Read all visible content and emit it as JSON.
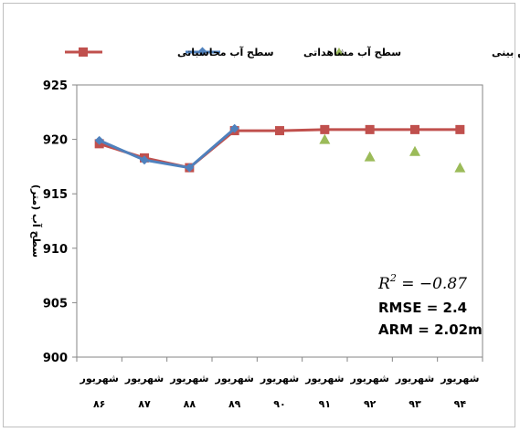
{
  "chart_data": {
    "type": "line",
    "ylabel": "سطح آب (متر)",
    "ylim": [
      900,
      925
    ],
    "yticks": [
      "900",
      "905",
      "910",
      "915",
      "920",
      "925"
    ],
    "categories": [
      {
        "top": "شهریور",
        "bottom": "۸۶"
      },
      {
        "top": "شهریور",
        "bottom": "۸۷"
      },
      {
        "top": "شهریور",
        "bottom": "۸۸"
      },
      {
        "top": "شهریور",
        "bottom": "۸۹"
      },
      {
        "top": "شهریور",
        "bottom": "۹۰"
      },
      {
        "top": "شهریور",
        "bottom": "۹۱"
      },
      {
        "top": "شهریور",
        "bottom": "۹۲"
      },
      {
        "top": "شهریور",
        "bottom": "۹۳"
      },
      {
        "top": "شهریور",
        "bottom": "۹۴"
      }
    ],
    "series": [
      {
        "name": "سطح آب محاسباتی",
        "color": "#c0504d",
        "marker": "square",
        "values": [
          919.6,
          918.3,
          917.4,
          920.8,
          920.8,
          920.9,
          920.9,
          920.9,
          920.9
        ]
      },
      {
        "name": "سطح آب مشاهداتی",
        "color": "#4f81bd",
        "marker": "diamond",
        "values": [
          919.9,
          918.1,
          917.4,
          921.0,
          null,
          null,
          null,
          null,
          null
        ]
      },
      {
        "name": "سطح آب مشاهداتی در دوره پیش بینی",
        "color": "#9bbb59",
        "marker": "triangle",
        "values": [
          null,
          null,
          null,
          null,
          null,
          920.0,
          918.4,
          918.9,
          917.4
        ]
      }
    ],
    "legend_position": "top",
    "grid": false,
    "annotations": {
      "r2_symbol": "R",
      "r2_exponent": "2",
      "r2_value": " = −0.87",
      "rmse": "RMSE = 2.4",
      "arm": "ARM = 2.02m"
    }
  }
}
